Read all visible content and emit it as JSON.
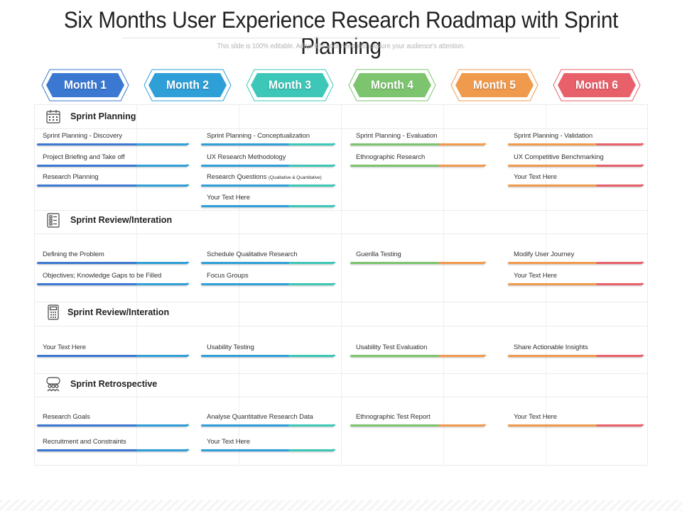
{
  "title": "Six Months User Experience Research Roadmap with Sprint Planning",
  "subtitle": "This slide is 100% editable. Adapt it to your need and capture your audience's attention.",
  "months": [
    {
      "label": "Month 1",
      "color": "#3b78d1"
    },
    {
      "label": "Month 2",
      "color": "#2f9fd8"
    },
    {
      "label": "Month 3",
      "color": "#3cc7b8"
    },
    {
      "label": "Month 4",
      "color": "#7cc46e"
    },
    {
      "label": "Month 5",
      "color": "#f09a4e"
    },
    {
      "label": "Month 6",
      "color": "#e8606a"
    }
  ],
  "sections": [
    {
      "title": "Sprint Planning",
      "icon": "calendar-icon",
      "rows": [
        [
          {
            "label": "Sprint Planning - Discovery"
          },
          {
            "label": "Sprint Planning - Conceptualization"
          },
          {
            "label": "Sprint Planning - Evaluation"
          },
          {
            "label": "Sprint Planning - Validation"
          }
        ],
        [
          {
            "label": "Project Briefing and Take off"
          },
          {
            "label": "UX Research Methodology"
          },
          {
            "label": "Ethnographic Research"
          },
          {
            "label": "UX Competitive Benchmarking"
          }
        ],
        [
          {
            "label": "Research Planning"
          },
          {
            "label": "Research Questions",
            "note": "(Qualitative & Quantitative)"
          },
          null,
          {
            "label": "Your Text Here"
          }
        ],
        [
          null,
          {
            "label": "Your Text Here"
          },
          null,
          null
        ]
      ]
    },
    {
      "title": "Sprint Review/Interation",
      "icon": "checklist-icon",
      "rows": [
        [
          {
            "label": "Defining the Problem"
          },
          {
            "label": "Schedule Qualitative Research"
          },
          {
            "label": "Guerilla Testing"
          },
          {
            "label": "Modify User Journey"
          }
        ],
        [
          {
            "label": "Objectives; Knowledge Gaps to be Filled"
          },
          {
            "label": "Focus Groups"
          },
          null,
          {
            "label": "Your Text Here"
          }
        ]
      ]
    },
    {
      "title": "Sprint Review/Interation",
      "icon": "calculator-icon",
      "rows": [
        [
          {
            "label": "Your Text Here"
          },
          {
            "label": "Usability Testing"
          },
          {
            "label": "Usability Test Evaluation"
          },
          {
            "label": "Share Actionable Insights"
          }
        ]
      ]
    },
    {
      "title": "Sprint Retrospective",
      "icon": "team-icon",
      "rows": [
        [
          {
            "label": "Research Goals"
          },
          {
            "label": "Analyse Quantitative Research Data"
          },
          {
            "label": "Ethnographic Test Report"
          },
          {
            "label": "Your Text Here"
          }
        ],
        [
          {
            "label": "Recruitment and Constraints"
          },
          {
            "label": "Your Text Here"
          },
          null,
          null
        ]
      ]
    }
  ],
  "bar_colors": [
    [
      "#3b78d1",
      "#2f9fd8"
    ],
    [
      "#2f9fd8",
      "#3cc7b8"
    ],
    [
      "#7cc46e",
      "#f09a4e"
    ],
    [
      "#f09a4e",
      "#e8606a"
    ]
  ]
}
